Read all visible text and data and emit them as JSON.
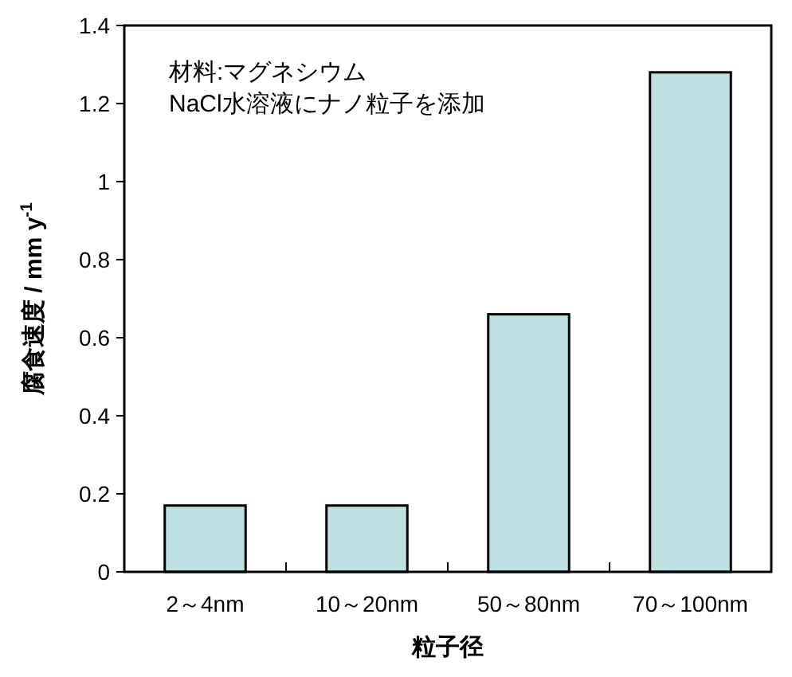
{
  "chart_data": {
    "type": "bar",
    "xlabel": "粒子径",
    "ylabel": "腐食速度 / mm y$^{-1}$",
    "categories": [
      "2～4nm",
      "10～20nm",
      "50～80nm",
      "70～100nm"
    ],
    "values": [
      0.17,
      0.17,
      0.66,
      1.28
    ],
    "color": "#bde0e3",
    "ylim": [
      0,
      1.4
    ],
    "yticks": [
      0,
      0.2,
      0.4,
      0.6,
      0.8,
      1,
      1.2,
      1.4
    ],
    "annotations": [
      "材料:マグネシウム",
      "NaCl水溶液にナノ粒子を添加"
    ]
  }
}
